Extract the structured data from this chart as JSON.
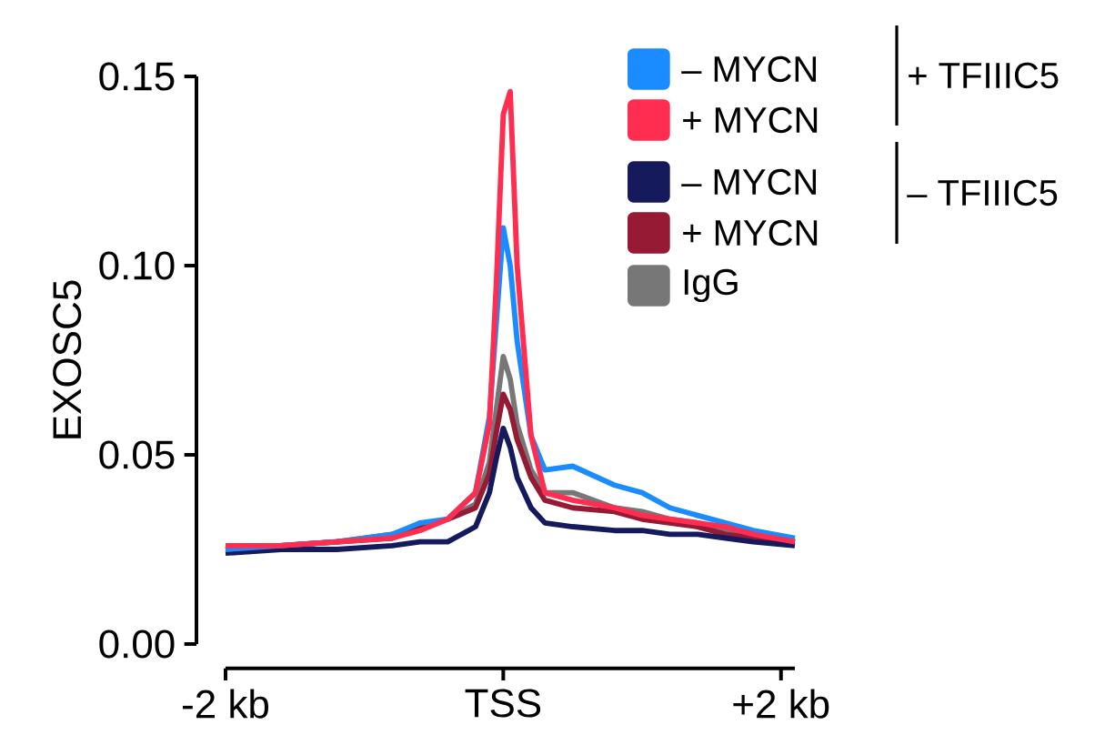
{
  "chart_data": {
    "type": "line",
    "ylabel": "EXOSC5",
    "xlim": [
      -2,
      2.1
    ],
    "ylim": [
      0,
      0.15
    ],
    "xticks": [
      {
        "value": -2,
        "label": "-2 kb"
      },
      {
        "value": 0,
        "label": "TSS"
      },
      {
        "value": 2,
        "label": "+2 kb"
      }
    ],
    "yticks": [
      {
        "value": 0,
        "label": "0.00"
      },
      {
        "value": 0.05,
        "label": "0.05"
      },
      {
        "value": 0.1,
        "label": "0.10"
      },
      {
        "value": 0.15,
        "label": "0.15"
      }
    ],
    "legend": "top right",
    "grid": false,
    "marker": "none",
    "line_style": "solid",
    "annotations": [
      "+ TFIIIC5",
      "– TFIIIC5"
    ],
    "series": [
      {
        "name": "IgG",
        "color": "#777777",
        "x": [
          -2,
          -1.6,
          -1.2,
          -0.8,
          -0.6,
          -0.4,
          -0.2,
          -0.1,
          -0.05,
          0,
          0.05,
          0.1,
          0.2,
          0.3,
          0.5,
          0.8,
          1.0,
          1.2,
          1.4,
          1.6,
          1.8,
          2.1
        ],
        "values": [
          0.025,
          0.026,
          0.027,
          0.029,
          0.031,
          0.033,
          0.037,
          0.048,
          0.062,
          0.076,
          0.07,
          0.058,
          0.046,
          0.04,
          0.04,
          0.036,
          0.035,
          0.033,
          0.032,
          0.03,
          0.029,
          0.027
        ]
      },
      {
        "name": "+ MYCN",
        "color": "#961a33",
        "x": [
          -2,
          -1.6,
          -1.2,
          -0.8,
          -0.6,
          -0.4,
          -0.2,
          -0.1,
          -0.05,
          0,
          0.05,
          0.1,
          0.2,
          0.3,
          0.5,
          0.8,
          1.0,
          1.2,
          1.4,
          1.6,
          1.8,
          2.1
        ],
        "values": [
          0.025,
          0.026,
          0.027,
          0.028,
          0.031,
          0.033,
          0.036,
          0.045,
          0.056,
          0.066,
          0.062,
          0.054,
          0.044,
          0.038,
          0.036,
          0.035,
          0.033,
          0.032,
          0.031,
          0.029,
          0.028,
          0.027
        ]
      },
      {
        "name": "– MYCN",
        "color": "#141a5c",
        "x": [
          -2,
          -1.6,
          -1.2,
          -0.8,
          -0.6,
          -0.4,
          -0.2,
          -0.1,
          -0.05,
          0,
          0.05,
          0.1,
          0.2,
          0.3,
          0.5,
          0.8,
          1.0,
          1.2,
          1.4,
          1.6,
          1.8,
          2.1
        ],
        "values": [
          0.024,
          0.025,
          0.025,
          0.026,
          0.027,
          0.027,
          0.031,
          0.04,
          0.049,
          0.057,
          0.052,
          0.044,
          0.036,
          0.032,
          0.031,
          0.03,
          0.03,
          0.029,
          0.029,
          0.028,
          0.027,
          0.026
        ]
      },
      {
        "name": "– MYCN",
        "color": "#1a8cff",
        "x": [
          -2,
          -1.6,
          -1.2,
          -0.8,
          -0.6,
          -0.4,
          -0.2,
          -0.1,
          -0.05,
          0,
          0.05,
          0.1,
          0.2,
          0.3,
          0.5,
          0.8,
          1.0,
          1.2,
          1.4,
          1.6,
          1.8,
          2.1
        ],
        "values": [
          0.025,
          0.026,
          0.027,
          0.029,
          0.032,
          0.033,
          0.04,
          0.06,
          0.085,
          0.11,
          0.1,
          0.08,
          0.055,
          0.046,
          0.047,
          0.042,
          0.04,
          0.036,
          0.034,
          0.032,
          0.03,
          0.028
        ]
      },
      {
        "name": "+ MYCN",
        "color": "#ff2d4f",
        "x": [
          -2,
          -1.6,
          -1.2,
          -0.8,
          -0.6,
          -0.4,
          -0.2,
          -0.1,
          -0.05,
          0,
          0.05,
          0.1,
          0.2,
          0.3,
          0.5,
          0.8,
          1.0,
          1.2,
          1.4,
          1.6,
          1.8,
          2.1
        ],
        "values": [
          0.026,
          0.026,
          0.027,
          0.028,
          0.03,
          0.033,
          0.04,
          0.058,
          0.095,
          0.14,
          0.146,
          0.1,
          0.055,
          0.04,
          0.038,
          0.036,
          0.034,
          0.033,
          0.032,
          0.031,
          0.029,
          0.027
        ]
      }
    ]
  }
}
